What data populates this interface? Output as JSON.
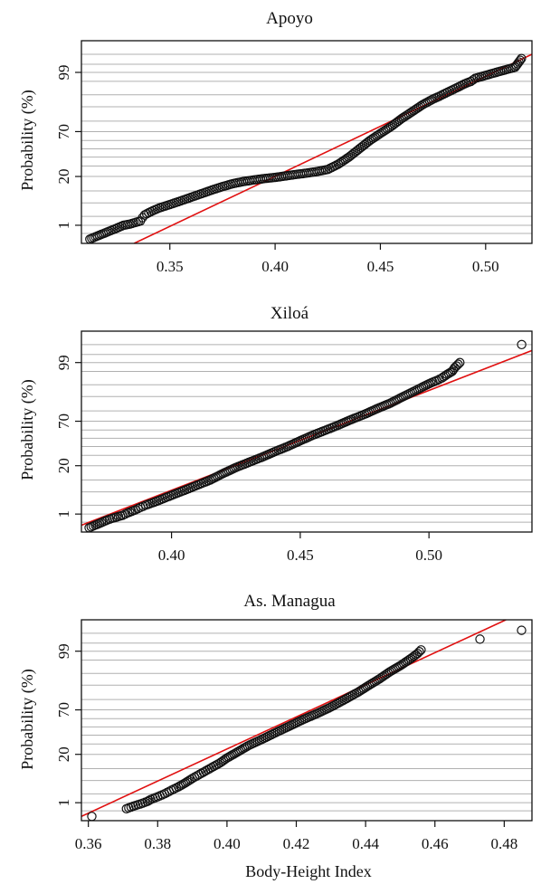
{
  "chart_data": [
    {
      "type": "scatter",
      "title": "Apoyo",
      "xlabel": "",
      "ylabel": "Probability (%)",
      "xlim": [
        0.308,
        0.522
      ],
      "x_ticks": [
        "0.35",
        "0.40",
        "0.45",
        "0.50"
      ],
      "y_ticks": [
        "1",
        "20",
        "70",
        "99"
      ],
      "probability_grid": [
        0.5,
        1,
        2,
        5,
        10,
        20,
        30,
        40,
        50,
        60,
        70,
        80,
        90,
        95,
        98,
        99,
        99.5,
        99.8
      ],
      "ylim_probability": [
        0.2,
        99.95
      ],
      "grid": true,
      "fit_line": {
        "x": [
          0.333,
          0.522
        ],
        "p": [
          0.2,
          99.8
        ]
      },
      "points": {
        "x": [
          0.312,
          0.321,
          0.325,
          0.328,
          0.331,
          0.336,
          0.337,
          0.338,
          0.34,
          0.342,
          0.345,
          0.35,
          0.355,
          0.36,
          0.365,
          0.37,
          0.375,
          0.38,
          0.385,
          0.39,
          0.395,
          0.4,
          0.405,
          0.41,
          0.415,
          0.42,
          0.425,
          0.43,
          0.435,
          0.44,
          0.445,
          0.45,
          0.455,
          0.46,
          0.465,
          0.47,
          0.475,
          0.478,
          0.48,
          0.484,
          0.487,
          0.49,
          0.493,
          0.495,
          0.505,
          0.514,
          0.517
        ],
        "p": [
          0.3,
          0.6,
          0.8,
          1.0,
          1.1,
          1.4,
          1.8,
          2.2,
          2.6,
          3.0,
          3.6,
          4.5,
          5.6,
          7.0,
          8.6,
          10.5,
          12.5,
          14.5,
          16.0,
          17.2,
          18.3,
          19.2,
          20.5,
          21.8,
          23.0,
          24.5,
          26.5,
          32.0,
          40.0,
          50.0,
          60.0,
          68.0,
          75.0,
          82.0,
          87.0,
          91.0,
          93.5,
          94.5,
          95.2,
          96.3,
          97.0,
          97.6,
          98.0,
          98.4,
          99.0,
          99.35,
          99.7
        ]
      }
    },
    {
      "type": "scatter",
      "title": "Xiloá",
      "xlabel": "",
      "ylabel": "Probability (%)",
      "xlim": [
        0.365,
        0.54
      ],
      "x_ticks": [
        "0.40",
        "0.45",
        "0.50"
      ],
      "y_ticks": [
        "1",
        "20",
        "70",
        "99"
      ],
      "probability_grid": [
        0.5,
        1,
        2,
        5,
        10,
        20,
        30,
        40,
        50,
        60,
        70,
        80,
        90,
        95,
        98,
        99,
        99.5,
        99.8
      ],
      "ylim_probability": [
        0.2,
        99.95
      ],
      "grid": true,
      "fit_line": {
        "x": [
          0.365,
          0.54
        ],
        "p": [
          0.38,
          99.65
        ]
      },
      "points": {
        "x": [
          0.368,
          0.372,
          0.375,
          0.377,
          0.381,
          0.383,
          0.386,
          0.388,
          0.39,
          0.395,
          0.4,
          0.405,
          0.41,
          0.415,
          0.42,
          0.425,
          0.43,
          0.435,
          0.44,
          0.445,
          0.45,
          0.455,
          0.46,
          0.465,
          0.47,
          0.475,
          0.48,
          0.485,
          0.49,
          0.495,
          0.5,
          0.503,
          0.505,
          0.507,
          0.509,
          0.51,
          0.512,
          0.536
        ],
        "p": [
          0.3,
          0.45,
          0.6,
          0.7,
          0.9,
          1.1,
          1.4,
          1.7,
          2.0,
          2.8,
          4.0,
          5.5,
          7.5,
          10.0,
          14.0,
          18.5,
          23.0,
          28.0,
          34.0,
          40.0,
          47.0,
          54.0,
          60.0,
          66.0,
          72.0,
          77.0,
          82.0,
          86.0,
          90.0,
          93.0,
          95.3,
          96.2,
          96.8,
          97.5,
          98.0,
          98.5,
          99.0,
          99.8
        ]
      }
    },
    {
      "type": "scatter",
      "title": "As. Managua",
      "xlabel": "Body-Height Index",
      "ylabel": "Probability (%)",
      "xlim": [
        0.358,
        0.488
      ],
      "x_ticks": [
        "0.36",
        "0.38",
        "0.40",
        "0.42",
        "0.44",
        "0.46",
        "0.48"
      ],
      "y_ticks": [
        "1",
        "20",
        "70",
        "99"
      ],
      "probability_grid": [
        0.5,
        1,
        2,
        5,
        10,
        20,
        30,
        40,
        50,
        60,
        70,
        80,
        90,
        95,
        98,
        99,
        99.5,
        99.8
      ],
      "ylim_probability": [
        0.2,
        99.95
      ],
      "grid": true,
      "fit_line": {
        "x": [
          0.358,
          0.4805
        ],
        "p": [
          0.3,
          99.95
        ]
      },
      "points": {
        "x": [
          0.361,
          0.371,
          0.373,
          0.375,
          0.377,
          0.378,
          0.38,
          0.382,
          0.384,
          0.386,
          0.388,
          0.39,
          0.392,
          0.395,
          0.398,
          0.4,
          0.403,
          0.406,
          0.41,
          0.414,
          0.418,
          0.422,
          0.426,
          0.43,
          0.434,
          0.438,
          0.441,
          0.444,
          0.447,
          0.45,
          0.453,
          0.455,
          0.456,
          0.473,
          0.485
        ],
        "p": [
          0.3,
          0.6,
          0.75,
          0.9,
          1.1,
          1.3,
          1.6,
          2.0,
          2.6,
          3.3,
          4.3,
          5.7,
          7.2,
          10.0,
          13.5,
          17.0,
          22.0,
          28.0,
          35.0,
          43.0,
          51.0,
          59.0,
          66.0,
          73.0,
          80.0,
          86.0,
          90.0,
          93.0,
          95.5,
          97.0,
          98.2,
          98.8,
          99.1,
          99.65,
          99.85
        ]
      }
    }
  ]
}
